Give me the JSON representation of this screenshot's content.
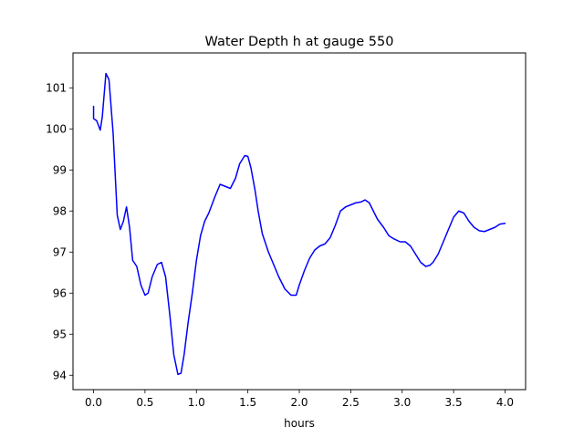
{
  "chart_data": {
    "type": "line",
    "title": "Water Depth h at gauge 550",
    "xlabel": "hours",
    "ylabel": "",
    "xlim": [
      -0.2,
      4.2
    ],
    "ylim": [
      93.65,
      101.85
    ],
    "x_ticks": [
      0.0,
      0.5,
      1.0,
      1.5,
      2.0,
      2.5,
      3.0,
      3.5,
      4.0
    ],
    "x_tick_labels": [
      "0.0",
      "0.5",
      "1.0",
      "1.5",
      "2.0",
      "2.5",
      "3.0",
      "3.5",
      "4.0"
    ],
    "y_ticks": [
      94,
      95,
      96,
      97,
      98,
      99,
      100,
      101
    ],
    "y_tick_labels": [
      "94",
      "95",
      "96",
      "97",
      "98",
      "99",
      "100",
      "101"
    ],
    "grid": false,
    "legend": "none",
    "series": [
      {
        "color": "#0000ff",
        "x": [
          0.0,
          0.0,
          0.03,
          0.065,
          0.085,
          0.12,
          0.15,
          0.19,
          0.23,
          0.26,
          0.29,
          0.32,
          0.35,
          0.38,
          0.42,
          0.46,
          0.5,
          0.53,
          0.57,
          0.62,
          0.66,
          0.7,
          0.74,
          0.78,
          0.82,
          0.85,
          0.88,
          0.92,
          0.96,
          1.0,
          1.04,
          1.08,
          1.12,
          1.18,
          1.23,
          1.28,
          1.33,
          1.38,
          1.42,
          1.47,
          1.5,
          1.53,
          1.57,
          1.6,
          1.64,
          1.7,
          1.75,
          1.8,
          1.86,
          1.92,
          1.97,
          2.0,
          2.05,
          2.1,
          2.15,
          2.2,
          2.25,
          2.3,
          2.35,
          2.4,
          2.45,
          2.5,
          2.55,
          2.6,
          2.64,
          2.68,
          2.72,
          2.76,
          2.82,
          2.87,
          2.92,
          2.98,
          3.03,
          3.08,
          3.13,
          3.18,
          3.23,
          3.27,
          3.3,
          3.35,
          3.4,
          3.45,
          3.5,
          3.55,
          3.6,
          3.65,
          3.7,
          3.75,
          3.8,
          3.85,
          3.9,
          3.95,
          4.0
        ],
        "y": [
          100.55,
          100.25,
          100.2,
          99.97,
          100.3,
          101.35,
          101.2,
          99.9,
          97.9,
          97.55,
          97.75,
          98.1,
          97.6,
          96.8,
          96.65,
          96.2,
          95.95,
          96.0,
          96.4,
          96.7,
          96.75,
          96.4,
          95.5,
          94.5,
          94.02,
          94.05,
          94.5,
          95.3,
          96.0,
          96.8,
          97.4,
          97.75,
          97.95,
          98.35,
          98.65,
          98.6,
          98.55,
          98.8,
          99.15,
          99.35,
          99.33,
          99.05,
          98.5,
          98.0,
          97.45,
          97.0,
          96.7,
          96.4,
          96.1,
          95.95,
          95.95,
          96.2,
          96.55,
          96.85,
          97.05,
          97.15,
          97.2,
          97.35,
          97.65,
          98.0,
          98.1,
          98.15,
          98.2,
          98.22,
          98.27,
          98.2,
          98.0,
          97.8,
          97.6,
          97.4,
          97.32,
          97.25,
          97.25,
          97.15,
          96.95,
          96.75,
          96.65,
          96.68,
          96.75,
          96.95,
          97.25,
          97.55,
          97.85,
          98.0,
          97.95,
          97.75,
          97.6,
          97.52,
          97.5,
          97.55,
          97.6,
          97.68,
          97.7
        ]
      }
    ]
  }
}
